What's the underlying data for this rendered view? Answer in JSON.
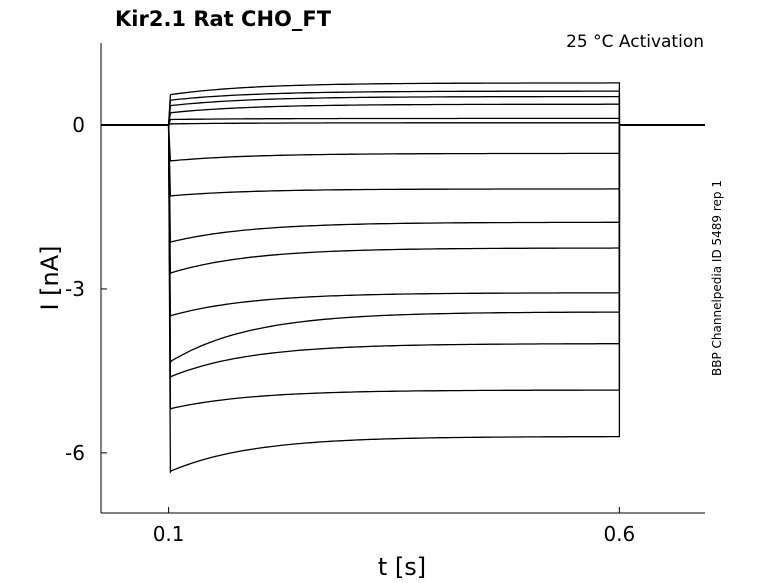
{
  "chart_data": {
    "type": "line",
    "title": "Kir2.1  Rat  CHO_FT",
    "annotation": "25 °C  Activation",
    "side_label": "BBP Channelpedia ID 5489 rep 1",
    "xlabel": "t [s]",
    "ylabel": "I [nA]",
    "xlim": [
      0.025,
      0.695
    ],
    "ylim": [
      -7.1,
      1.5
    ],
    "xticks": [
      0.1,
      0.6
    ],
    "xtick_labels": [
      "0.1",
      "0.6"
    ],
    "yticks": [
      0,
      -3,
      -6
    ],
    "ytick_labels": [
      "0",
      "-3",
      "-6"
    ],
    "grid": false,
    "legend": "none",
    "step_start": 0.1,
    "step_end": 0.6,
    "series": [
      {
        "peak": 0.55,
        "steady": 0.77
      },
      {
        "peak": 0.45,
        "steady": 0.62
      },
      {
        "peak": 0.35,
        "steady": 0.52
      },
      {
        "peak": 0.22,
        "steady": 0.38
      },
      {
        "peak": 0.1,
        "steady": 0.12
      },
      {
        "peak": 0.02,
        "steady": 0.04
      },
      {
        "peak": -0.66,
        "steady": -0.52
      },
      {
        "peak": -1.3,
        "steady": -1.17
      },
      {
        "peak": -2.15,
        "steady": -1.78
      },
      {
        "peak": -2.72,
        "steady": -2.25
      },
      {
        "peak": -3.5,
        "steady": -3.07
      },
      {
        "peak": -4.35,
        "steady": -3.42
      },
      {
        "peak": -4.62,
        "steady": -4.0
      },
      {
        "peak": -5.2,
        "steady": -4.85
      },
      {
        "peak": -6.35,
        "steady": -5.7
      }
    ]
  }
}
